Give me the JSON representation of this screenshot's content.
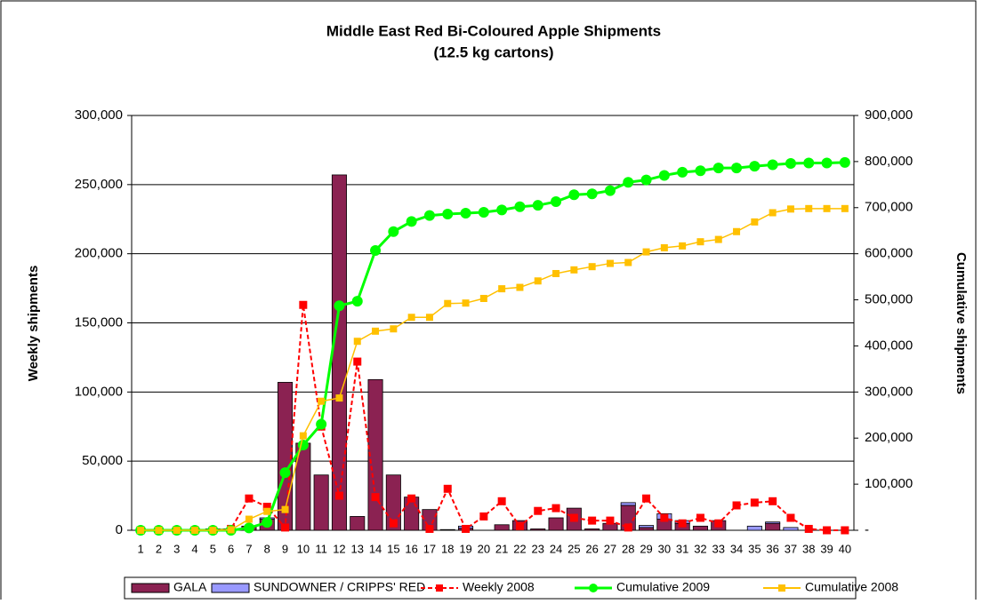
{
  "chart_data": {
    "type": "combo",
    "title": "Middle East Red Bi-Coloured Apple Shipments",
    "subtitle": "(12.5 kg cartons)",
    "y_label": "Weekly shipments",
    "y2_label": "Cumulative shipments",
    "categories": [
      "1",
      "2",
      "3",
      "4",
      "5",
      "6",
      "7",
      "8",
      "9",
      "10",
      "11",
      "12",
      "13",
      "14",
      "15",
      "16",
      "17",
      "18",
      "19",
      "20",
      "21",
      "22",
      "23",
      "24",
      "25",
      "26",
      "27",
      "28",
      "29",
      "30",
      "31",
      "32",
      "33",
      "34",
      "35",
      "36",
      "37",
      "38",
      "39",
      "40"
    ],
    "ylim": [
      0,
      300000
    ],
    "yticks": [
      0,
      {
        "value": 50000,
        "label": "50,000"
      },
      {
        "value": 100000,
        "label": "100,000"
      },
      {
        "value": 150000,
        "label": "150,000"
      },
      {
        "value": 200000,
        "label": "200,000"
      },
      {
        "value": 250000,
        "label": "250,000"
      },
      {
        "value": 300000,
        "label": "300,000"
      }
    ],
    "y2lim": [
      0,
      900000
    ],
    "y2ticks": [
      {
        "value": 0,
        "label": "-"
      },
      {
        "value": 100000,
        "label": "100,000"
      },
      {
        "value": 200000,
        "label": "200,000"
      },
      {
        "value": 300000,
        "label": "300,000"
      },
      {
        "value": 400000,
        "label": "400,000"
      },
      {
        "value": 500000,
        "label": "500,000"
      },
      {
        "value": 600000,
        "label": "600,000"
      },
      {
        "value": 700000,
        "label": "700,000"
      },
      {
        "value": 800000,
        "label": "800,000"
      },
      {
        "value": 900000,
        "label": "900,000"
      }
    ],
    "grid": true,
    "series": [
      {
        "name": "GALA",
        "kind": "bar",
        "color": "#8b2252",
        "values": [
          0,
          0,
          0,
          0,
          1000,
          1000,
          3000,
          8000,
          107000,
          63000,
          40000,
          257000,
          10000,
          109000,
          40000,
          24000,
          15000,
          500,
          1500,
          0,
          4000,
          7000,
          1000,
          9000,
          16000,
          1000,
          5000,
          18000,
          2000,
          8000,
          5000,
          3000,
          7000,
          0,
          0,
          5000,
          0,
          0,
          0,
          0
        ]
      },
      {
        "name": "SUNDOWNER / CRIPPS' RED",
        "kind": "bar",
        "color": "#9999ff",
        "values": [
          0,
          0,
          0,
          0,
          0,
          0,
          0,
          1000,
          0,
          0,
          0,
          0,
          0,
          0,
          0,
          0,
          0,
          0,
          1500,
          0,
          0,
          0,
          0,
          0,
          0,
          0,
          0,
          2000,
          1500,
          4000,
          2000,
          0,
          0,
          0,
          3000,
          1000,
          2000,
          0,
          0,
          0
        ]
      },
      {
        "name": "Weekly 2008",
        "kind": "dashed",
        "color": "#ff0000",
        "values": [
          0,
          0,
          0,
          0,
          0,
          1000,
          23000,
          17000,
          2000,
          163000,
          75000,
          25000,
          122000,
          24000,
          5000,
          23000,
          1000,
          30000,
          1000,
          10000,
          21000,
          3000,
          14000,
          16000,
          9000,
          7000,
          7000,
          2000,
          23000,
          9000,
          5000,
          9000,
          5000,
          18000,
          20000,
          21000,
          9000,
          1000,
          0,
          0
        ]
      },
      {
        "name": "Cumulative 2009",
        "kind": "line",
        "axis": "y2",
        "color": "#00ff00",
        "values": [
          0,
          0,
          0,
          0,
          0,
          0,
          5000,
          17000,
          125000,
          185000,
          230000,
          487000,
          497000,
          607000,
          648000,
          670000,
          683000,
          686000,
          688000,
          690000,
          695000,
          702000,
          705000,
          713000,
          728000,
          730000,
          737000,
          755000,
          760000,
          770000,
          777000,
          780000,
          786000,
          786000,
          790000,
          793000,
          796000,
          797000,
          797000,
          798000
        ]
      },
      {
        "name": "Cumulative 2008",
        "kind": "line",
        "axis": "y2",
        "color": "#ffc000",
        "values": [
          0,
          0,
          0,
          0,
          0,
          1000,
          24000,
          41000,
          45000,
          205000,
          280000,
          287000,
          410000,
          432000,
          437000,
          462000,
          462000,
          492000,
          493000,
          503000,
          524000,
          527000,
          541000,
          557000,
          565000,
          572000,
          579000,
          581000,
          604000,
          613000,
          617000,
          626000,
          631000,
          648000,
          669000,
          689000,
          697000,
          698000,
          698000,
          698000
        ]
      }
    ]
  }
}
